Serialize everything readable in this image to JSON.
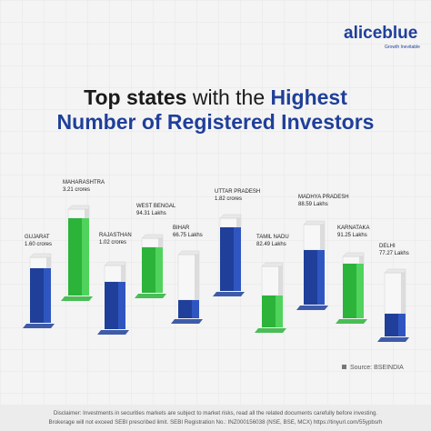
{
  "header": {
    "brand": "aliceblue",
    "tagline": "Growth Inevitable",
    "title": {
      "part1": "Top states",
      "part2": "with the",
      "part3": "Highest",
      "line2": "Number of Registered Investors"
    }
  },
  "states": [
    {
      "name": "GUJARAT",
      "value": "1.60 crores"
    },
    {
      "name": "MAHARASHTRA",
      "value": "3.21 crores"
    },
    {
      "name": "RAJASTHAN",
      "value": "1.02 crores"
    },
    {
      "name": "WEST BENGAL",
      "value": "94.31 Lakhs"
    },
    {
      "name": "BIHAR",
      "value": "66.75 Lakhs"
    },
    {
      "name": "UTTAR PRADESH",
      "value": "1.82 crores"
    },
    {
      "name": "TAMIL NADU",
      "value": "82.49 Lakhs"
    },
    {
      "name": "MADHYA PRADESH",
      "value": "88.59 Lakhs"
    },
    {
      "name": "KARNATAKA",
      "value": "91.25 Lakhs"
    },
    {
      "name": "DELHI",
      "value": "77.27 Lakhs"
    }
  ],
  "source": "Source: BSEINDIA",
  "disclaimer": {
    "line1": "Disclaimer: Investments in securities markets are subject to market risks, read all the related documents carefully before investing.",
    "line2": "Brokerage will not exceed SEBI prescribed limit. SEBI Registration No.: INZ000156038 (NSE, BSE, MCX) https://tinyurl.com/55ypbsrh"
  }
}
